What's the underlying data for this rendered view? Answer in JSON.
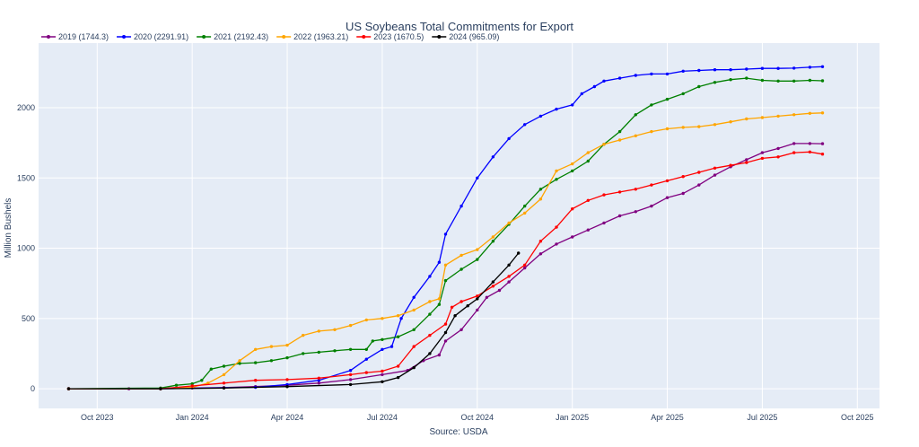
{
  "chart_data": {
    "type": "line",
    "title": "US Soybeans Total Commitments for Export",
    "xlabel": "Source: USDA",
    "ylabel": "Million Bushels",
    "ylim": [
      -140,
      2460
    ],
    "yticks": [
      0,
      500,
      1000,
      1500,
      2000
    ],
    "xlim": [
      -0.85,
      25.7
    ],
    "xticks": [
      {
        "label": "Oct 2023",
        "x": 1
      },
      {
        "label": "Jan 2024",
        "x": 4
      },
      {
        "label": "Apr 2024",
        "x": 7
      },
      {
        "label": "Jul 2024",
        "x": 10
      },
      {
        "label": "Oct 2024",
        "x": 13
      },
      {
        "label": "Jan 2025",
        "x": 16
      },
      {
        "label": "Apr 2025",
        "x": 19
      },
      {
        "label": "Jul 2025",
        "x": 22
      },
      {
        "label": "Oct 2025",
        "x": 25
      }
    ],
    "x_unit_note": "x in months since Sep 2023",
    "grid": true,
    "legend_position": "top-left",
    "series": [
      {
        "name": "2019 (1744.3)",
        "color": "#800080",
        "points": [
          [
            0.1,
            0
          ],
          [
            2,
            0
          ],
          [
            4,
            5
          ],
          [
            5,
            8
          ],
          [
            6,
            15
          ],
          [
            7,
            25
          ],
          [
            8,
            40
          ],
          [
            9,
            65
          ],
          [
            10,
            100
          ],
          [
            10.8,
            130
          ],
          [
            11.3,
            200
          ],
          [
            11.8,
            240
          ],
          [
            12,
            340
          ],
          [
            12.5,
            420
          ],
          [
            13,
            560
          ],
          [
            13.3,
            650
          ],
          [
            13.7,
            700
          ],
          [
            14,
            760
          ],
          [
            14.5,
            860
          ],
          [
            15,
            960
          ],
          [
            15.5,
            1030
          ],
          [
            16,
            1080
          ],
          [
            16.5,
            1130
          ],
          [
            17,
            1180
          ],
          [
            17.5,
            1230
          ],
          [
            18,
            1260
          ],
          [
            18.5,
            1300
          ],
          [
            19,
            1360
          ],
          [
            19.5,
            1390
          ],
          [
            20,
            1450
          ],
          [
            20.5,
            1520
          ],
          [
            21,
            1580
          ],
          [
            21.5,
            1630
          ],
          [
            22,
            1680
          ],
          [
            22.5,
            1710
          ],
          [
            23,
            1745
          ],
          [
            23.5,
            1745
          ],
          [
            23.9,
            1744
          ]
        ]
      },
      {
        "name": "2020 (2291.91)",
        "color": "#0000ff",
        "points": [
          [
            0.1,
            0
          ],
          [
            3,
            0
          ],
          [
            6,
            10
          ],
          [
            7,
            30
          ],
          [
            8,
            60
          ],
          [
            9,
            130
          ],
          [
            9.5,
            210
          ],
          [
            10,
            280
          ],
          [
            10.3,
            300
          ],
          [
            10.6,
            500
          ],
          [
            11,
            650
          ],
          [
            11.5,
            800
          ],
          [
            11.8,
            900
          ],
          [
            12,
            1100
          ],
          [
            12.5,
            1300
          ],
          [
            13,
            1500
          ],
          [
            13.5,
            1650
          ],
          [
            14,
            1780
          ],
          [
            14.5,
            1880
          ],
          [
            15,
            1940
          ],
          [
            15.5,
            1990
          ],
          [
            16,
            2020
          ],
          [
            16.3,
            2100
          ],
          [
            16.7,
            2150
          ],
          [
            17,
            2190
          ],
          [
            17.5,
            2210
          ],
          [
            18,
            2230
          ],
          [
            18.5,
            2240
          ],
          [
            19,
            2240
          ],
          [
            19.5,
            2260
          ],
          [
            20,
            2265
          ],
          [
            20.5,
            2270
          ],
          [
            21,
            2270
          ],
          [
            21.5,
            2275
          ],
          [
            22,
            2280
          ],
          [
            22.5,
            2280
          ],
          [
            23,
            2282
          ],
          [
            23.5,
            2288
          ],
          [
            23.9,
            2292
          ]
        ]
      },
      {
        "name": "2021 (2192.43)",
        "color": "#008000",
        "points": [
          [
            0.1,
            0
          ],
          [
            3,
            5
          ],
          [
            3.5,
            25
          ],
          [
            4,
            35
          ],
          [
            4.3,
            60
          ],
          [
            4.6,
            140
          ],
          [
            5,
            160
          ],
          [
            5.5,
            180
          ],
          [
            6,
            185
          ],
          [
            6.5,
            200
          ],
          [
            7,
            220
          ],
          [
            7.5,
            250
          ],
          [
            8,
            260
          ],
          [
            8.5,
            270
          ],
          [
            9,
            280
          ],
          [
            9.5,
            280
          ],
          [
            9.7,
            340
          ],
          [
            10,
            350
          ],
          [
            10.5,
            370
          ],
          [
            11,
            420
          ],
          [
            11.5,
            530
          ],
          [
            11.8,
            600
          ],
          [
            12,
            770
          ],
          [
            12.5,
            850
          ],
          [
            13,
            920
          ],
          [
            13.5,
            1050
          ],
          [
            14,
            1170
          ],
          [
            14.5,
            1300
          ],
          [
            15,
            1420
          ],
          [
            15.5,
            1490
          ],
          [
            16,
            1550
          ],
          [
            16.5,
            1620
          ],
          [
            17,
            1740
          ],
          [
            17.5,
            1830
          ],
          [
            18,
            1950
          ],
          [
            18.5,
            2020
          ],
          [
            19,
            2060
          ],
          [
            19.5,
            2100
          ],
          [
            20,
            2150
          ],
          [
            20.5,
            2180
          ],
          [
            21,
            2200
          ],
          [
            21.5,
            2210
          ],
          [
            22,
            2195
          ],
          [
            22.5,
            2190
          ],
          [
            23,
            2190
          ],
          [
            23.5,
            2195
          ],
          [
            23.9,
            2192
          ]
        ]
      },
      {
        "name": "2022 (1963.21)",
        "color": "#ffa500",
        "points": [
          [
            0.1,
            0
          ],
          [
            3,
            0
          ],
          [
            4,
            10
          ],
          [
            4.5,
            40
          ],
          [
            5,
            100
          ],
          [
            5.5,
            200
          ],
          [
            6,
            280
          ],
          [
            6.5,
            300
          ],
          [
            7,
            310
          ],
          [
            7.5,
            380
          ],
          [
            8,
            410
          ],
          [
            8.5,
            420
          ],
          [
            9,
            450
          ],
          [
            9.5,
            490
          ],
          [
            10,
            500
          ],
          [
            10.5,
            520
          ],
          [
            11,
            560
          ],
          [
            11.5,
            620
          ],
          [
            11.8,
            640
          ],
          [
            12,
            880
          ],
          [
            12.5,
            950
          ],
          [
            13,
            990
          ],
          [
            13.5,
            1080
          ],
          [
            14,
            1180
          ],
          [
            14.5,
            1250
          ],
          [
            15,
            1350
          ],
          [
            15.5,
            1550
          ],
          [
            16,
            1600
          ],
          [
            16.5,
            1680
          ],
          [
            17,
            1740
          ],
          [
            17.5,
            1770
          ],
          [
            18,
            1800
          ],
          [
            18.5,
            1830
          ],
          [
            19,
            1850
          ],
          [
            19.5,
            1860
          ],
          [
            20,
            1865
          ],
          [
            20.5,
            1880
          ],
          [
            21,
            1900
          ],
          [
            21.5,
            1920
          ],
          [
            22,
            1930
          ],
          [
            22.5,
            1940
          ],
          [
            23,
            1950
          ],
          [
            23.5,
            1960
          ],
          [
            23.9,
            1963
          ]
        ]
      },
      {
        "name": "2023 (1670.5)",
        "color": "#ff0000",
        "points": [
          [
            0.1,
            0
          ],
          [
            3,
            0
          ],
          [
            4,
            20
          ],
          [
            5,
            40
          ],
          [
            6,
            60
          ],
          [
            7,
            65
          ],
          [
            8,
            75
          ],
          [
            9,
            100
          ],
          [
            9.5,
            115
          ],
          [
            10,
            125
          ],
          [
            10.5,
            160
          ],
          [
            11,
            300
          ],
          [
            11.5,
            380
          ],
          [
            12,
            460
          ],
          [
            12.2,
            580
          ],
          [
            12.5,
            620
          ],
          [
            13,
            660
          ],
          [
            13.5,
            730
          ],
          [
            14,
            800
          ],
          [
            14.5,
            880
          ],
          [
            15,
            1050
          ],
          [
            15.5,
            1150
          ],
          [
            16,
            1280
          ],
          [
            16.5,
            1340
          ],
          [
            17,
            1380
          ],
          [
            17.5,
            1400
          ],
          [
            18,
            1420
          ],
          [
            18.5,
            1450
          ],
          [
            19,
            1480
          ],
          [
            19.5,
            1510
          ],
          [
            20,
            1540
          ],
          [
            20.5,
            1570
          ],
          [
            21,
            1590
          ],
          [
            21.5,
            1610
          ],
          [
            22,
            1640
          ],
          [
            22.5,
            1650
          ],
          [
            23,
            1680
          ],
          [
            23.5,
            1685
          ],
          [
            23.9,
            1670
          ]
        ]
      },
      {
        "name": "2024 (965.09)",
        "color": "#000000",
        "points": [
          [
            0.1,
            0
          ],
          [
            3,
            0
          ],
          [
            5,
            5
          ],
          [
            7,
            15
          ],
          [
            9,
            30
          ],
          [
            10,
            50
          ],
          [
            10.5,
            80
          ],
          [
            11,
            150
          ],
          [
            11.5,
            250
          ],
          [
            12,
            400
          ],
          [
            12.3,
            520
          ],
          [
            12.7,
            590
          ],
          [
            13,
            640
          ],
          [
            13.5,
            760
          ],
          [
            14,
            880
          ],
          [
            14.3,
            965
          ]
        ]
      }
    ]
  }
}
